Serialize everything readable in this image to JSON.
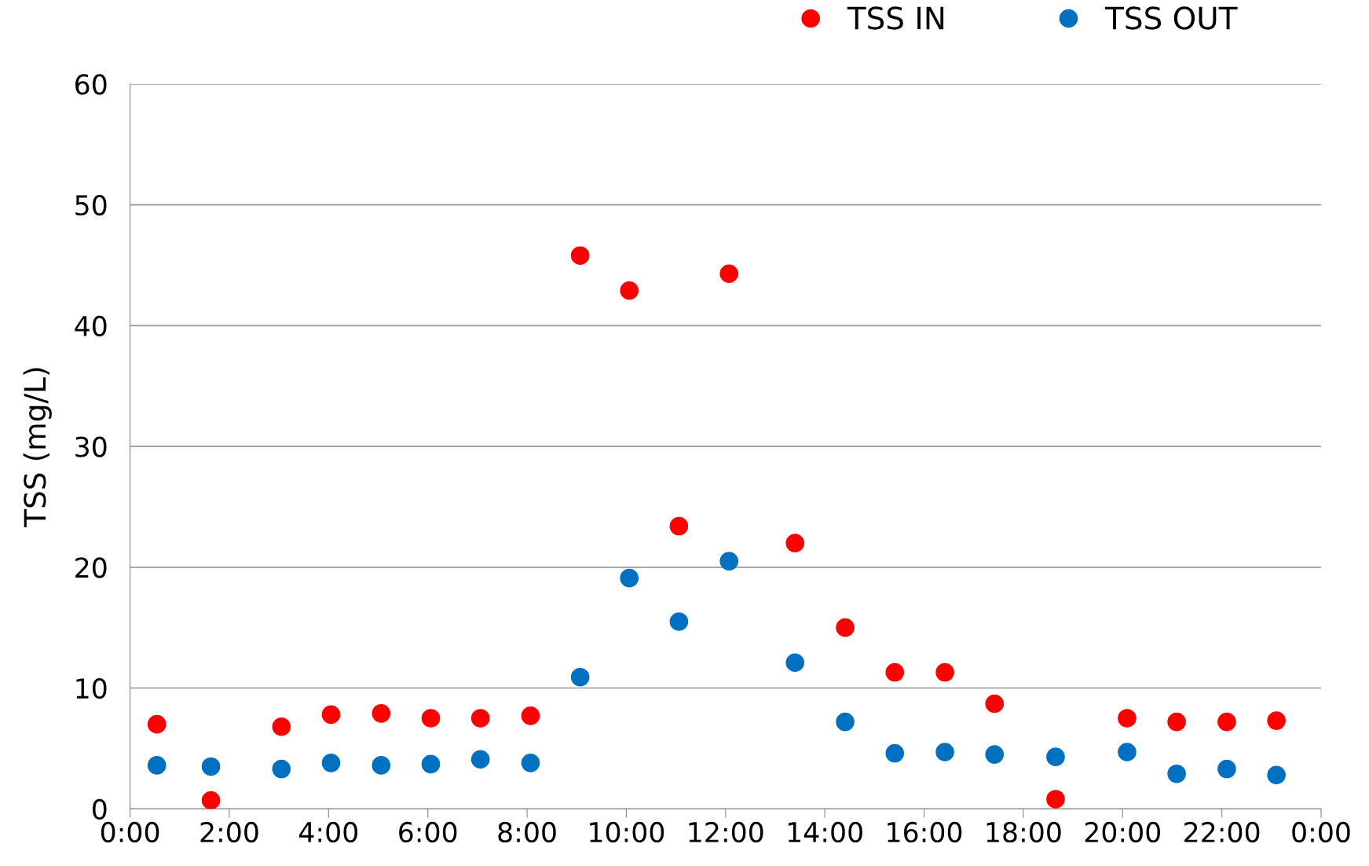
{
  "chart_data": {
    "type": "scatter",
    "ylabel": "TSS (mg/L)",
    "x": [
      0.54,
      1.63,
      3.05,
      4.05,
      5.06,
      6.06,
      7.06,
      8.07,
      9.07,
      10.06,
      11.06,
      12.07,
      13.4,
      14.41,
      15.41,
      16.42,
      17.42,
      18.65,
      20.09,
      21.09,
      22.1,
      23.1
    ],
    "series": [
      {
        "name": "TSS IN",
        "color": "#ff0000",
        "values": [
          7.0,
          0.7,
          6.8,
          7.8,
          7.9,
          7.5,
          7.5,
          7.7,
          45.8,
          42.9,
          23.4,
          44.3,
          22.0,
          15.0,
          11.3,
          11.3,
          8.7,
          0.8,
          7.5,
          7.2,
          7.2,
          7.3
        ]
      },
      {
        "name": "TSS OUT",
        "color": "#0070c0",
        "values": [
          3.6,
          3.5,
          3.3,
          3.8,
          3.6,
          3.7,
          4.1,
          3.8,
          10.9,
          19.1,
          15.5,
          20.5,
          12.1,
          7.2,
          4.6,
          4.7,
          4.5,
          4.3,
          4.7,
          2.9,
          3.3,
          2.8
        ]
      }
    ],
    "xlim": [
      0,
      24
    ],
    "xticks": [
      {
        "value": 0,
        "label": "0:00"
      },
      {
        "value": 2,
        "label": "2:00"
      },
      {
        "value": 4,
        "label": "4:00"
      },
      {
        "value": 6,
        "label": "6:00"
      },
      {
        "value": 8,
        "label": "8:00"
      },
      {
        "value": 10,
        "label": "10:00"
      },
      {
        "value": 12,
        "label": "12:00"
      },
      {
        "value": 14,
        "label": "14:00"
      },
      {
        "value": 16,
        "label": "16:00"
      },
      {
        "value": 18,
        "label": "18:00"
      },
      {
        "value": 20,
        "label": "20:00"
      },
      {
        "value": 22,
        "label": "22:00"
      },
      {
        "value": 24,
        "label": "0:00"
      }
    ],
    "ylim": [
      0,
      60
    ],
    "yticks": [
      0,
      10,
      20,
      30,
      40,
      50,
      60
    ],
    "grid": "y",
    "legend": "top right",
    "marker": "circle"
  }
}
